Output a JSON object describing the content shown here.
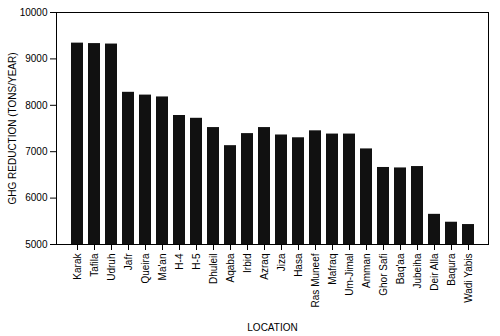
{
  "chart_data": {
    "type": "bar",
    "categories": [
      "Karak",
      "Tafila",
      "Udruh",
      "Jafr",
      "Queira",
      "Ma'an",
      "H-4",
      "H-5",
      "Dhuleil",
      "Aqaba",
      "Irbid",
      "Azraq",
      "Jiza",
      "Hasa",
      "Ras Muneef",
      "Mafraq",
      "Um-Jimal",
      "Amman",
      "Ghor Safi",
      "Baq'aa",
      "Jubeiha",
      "Deir Alla",
      "Baqura",
      "Wadi Yabis"
    ],
    "values": [
      9340,
      9330,
      9320,
      8280,
      8220,
      8180,
      7780,
      7720,
      7520,
      7130,
      7390,
      7520,
      7360,
      7300,
      7450,
      7380,
      7380,
      7060,
      6660,
      6650,
      6680,
      5650,
      5480,
      5430
    ],
    "color": "#111111",
    "xlabel": "LOCATION",
    "ylabel": "GHG REDUCTION (TONS/YEAR)",
    "ylim": [
      5000,
      10000
    ],
    "yticks": [
      5000,
      6000,
      7000,
      8000,
      9000,
      10000
    ],
    "grid": false
  }
}
